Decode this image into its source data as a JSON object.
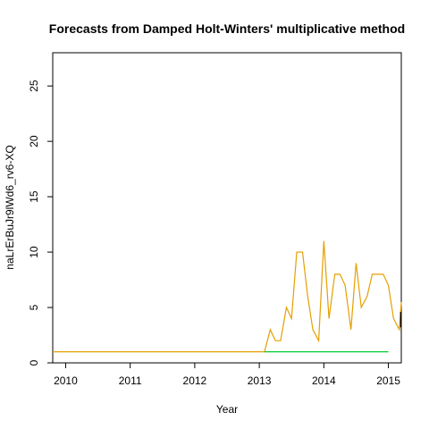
{
  "chart_data": {
    "type": "line",
    "title": "Forecasts from Damped Holt-Winters' multiplicative method",
    "xlabel": "Year",
    "ylabel": "naLrErBuJr9lWd6_rv6-XQ",
    "xlim": [
      2009.8,
      2015.2
    ],
    "ylim": [
      0,
      28
    ],
    "x_ticks": [
      2010,
      2011,
      2012,
      2013,
      2014,
      2015
    ],
    "y_ticks": [
      0,
      5,
      10,
      15,
      20,
      25
    ],
    "grid": false,
    "legend": "none",
    "series": [
      {
        "color": "#E69F00",
        "points": [
          [
            2009.8,
            1
          ],
          [
            2013.08,
            1
          ],
          [
            2013.17,
            3
          ],
          [
            2013.25,
            2
          ],
          [
            2013.33,
            2
          ],
          [
            2013.42,
            5
          ],
          [
            2013.5,
            4
          ],
          [
            2013.58,
            10
          ],
          [
            2013.67,
            10
          ],
          [
            2013.75,
            6
          ],
          [
            2013.83,
            3
          ],
          [
            2013.92,
            2
          ],
          [
            2014.0,
            11
          ],
          [
            2014.08,
            4
          ],
          [
            2014.17,
            8
          ],
          [
            2014.25,
            8
          ],
          [
            2014.33,
            7
          ],
          [
            2014.42,
            3
          ],
          [
            2014.5,
            9
          ],
          [
            2014.58,
            5
          ],
          [
            2014.67,
            6
          ],
          [
            2014.75,
            8
          ],
          [
            2014.83,
            8
          ],
          [
            2014.92,
            8
          ],
          [
            2015.0,
            7
          ],
          [
            2015.08,
            4
          ],
          [
            2015.17,
            3
          ],
          [
            2015.2,
            5.5
          ]
        ]
      },
      {
        "color": "#00CC33",
        "points": [
          [
            2013.08,
            1
          ],
          [
            2015.0,
            1
          ]
        ]
      },
      {
        "color": "#000000",
        "points": [
          [
            2015.19,
            3.2
          ],
          [
            2015.19,
            4.6
          ]
        ]
      }
    ]
  }
}
